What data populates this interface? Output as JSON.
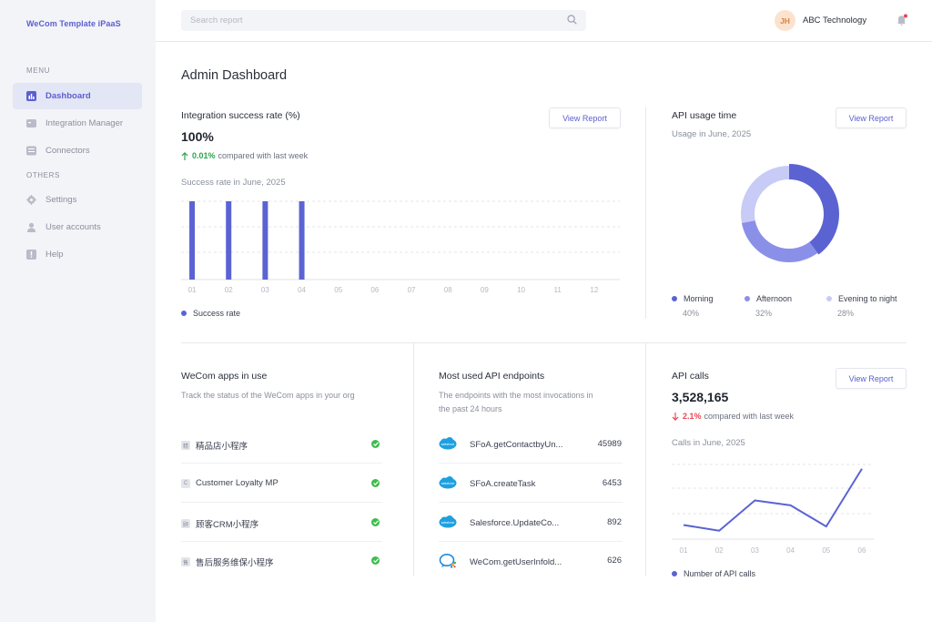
{
  "sidebar": {
    "brand": "WeCom Template iPaaS",
    "menu_label": "MENU",
    "others_label": "OTHERS",
    "menu_items": [
      {
        "label": "Dashboard",
        "icon": "bar-chart-icon",
        "active": true
      },
      {
        "label": "Integration Manager",
        "icon": "folder-icon",
        "active": false
      },
      {
        "label": "Connectors",
        "icon": "grid-icon",
        "active": false
      }
    ],
    "other_items": [
      {
        "label": "Settings",
        "icon": "gear-icon"
      },
      {
        "label": "User accounts",
        "icon": "user-icon"
      },
      {
        "label": "Help",
        "icon": "help-icon"
      }
    ]
  },
  "header": {
    "search_placeholder": "Search report",
    "avatar_initials": "JH",
    "org_name": "ABC Technology"
  },
  "page": {
    "title": "Admin Dashboard"
  },
  "integration": {
    "title": "Integration success rate (%)",
    "value": "100%",
    "change_pct": "0.01%",
    "change_text": "compared with last week",
    "change_direction": "up",
    "button": "View Report",
    "subtitle": "Success rate in June, 2025",
    "legend": "Success rate"
  },
  "api_usage": {
    "title": "API usage time",
    "subtitle": "Usage in June, 2025",
    "button": "View Report"
  },
  "apps": {
    "title": "WeCom apps in use",
    "subtitle": "Track the status of the WeCom apps in your org",
    "items": [
      {
        "icon_char": "精",
        "name": "精品店小程序",
        "status": "ok"
      },
      {
        "icon_char": "C",
        "name": "Customer Loyalty MP",
        "status": "ok"
      },
      {
        "icon_char": "顾",
        "name": "顾客CRM小程序",
        "status": "ok"
      },
      {
        "icon_char": "售",
        "name": "售后服务维保小程序",
        "status": "ok"
      }
    ]
  },
  "endpoints": {
    "title": "Most used API endpoints",
    "subtitle_line1": "The endpoints with the most invocations in",
    "subtitle_line2": "the past 24 hours",
    "items": [
      {
        "name": "SFoA.getContactbyUn...",
        "count": "45989",
        "icon": "salesforce-icon"
      },
      {
        "name": "SFoA.createTask",
        "count": "6453",
        "icon": "salesforce-icon"
      },
      {
        "name": "Salesforce.UpdateCo...",
        "count": "892",
        "icon": "salesforce-icon"
      },
      {
        "name": "WeCom.getUserInfold...",
        "count": "626",
        "icon": "wecom-icon"
      }
    ]
  },
  "api_calls": {
    "title": "API calls",
    "value": "3,528,165",
    "change_pct": "2.1%",
    "change_text": "compared with last week",
    "change_direction": "down",
    "button": "View Report",
    "subtitle": "Calls in June, 2025",
    "legend": "Number of API calls"
  },
  "colors": {
    "accent": "#5b5fcf",
    "bar": "#5b63d3",
    "donut_morning": "#5b63d3",
    "donut_afternoon": "#8a90e8",
    "donut_evening": "#c8cbf5",
    "up": "#2ea44f",
    "down": "#e5484d"
  },
  "chart_data": [
    {
      "type": "bar",
      "categories": [
        "01",
        "02",
        "03",
        "04",
        "05",
        "06",
        "07",
        "08",
        "09",
        "10",
        "11",
        "12"
      ],
      "values": [
        100,
        100,
        100,
        100,
        null,
        null,
        null,
        null,
        null,
        null,
        null,
        null
      ],
      "ylim": [
        0,
        100
      ],
      "grid": true,
      "series_name": "Success rate"
    },
    {
      "type": "pie",
      "variant": "donut",
      "labels": [
        "Morning",
        "Afternoon",
        "Evening to night"
      ],
      "values": [
        40,
        32,
        28
      ],
      "value_labels": [
        "40%",
        "32%",
        "28%"
      ]
    },
    {
      "type": "line",
      "categories": [
        "01",
        "02",
        "03",
        "04",
        "05",
        "06"
      ],
      "values": [
        20,
        12,
        55,
        48,
        18,
        100
      ],
      "ylim": [
        0,
        110
      ],
      "grid": true,
      "series_name": "Number of API calls"
    }
  ]
}
